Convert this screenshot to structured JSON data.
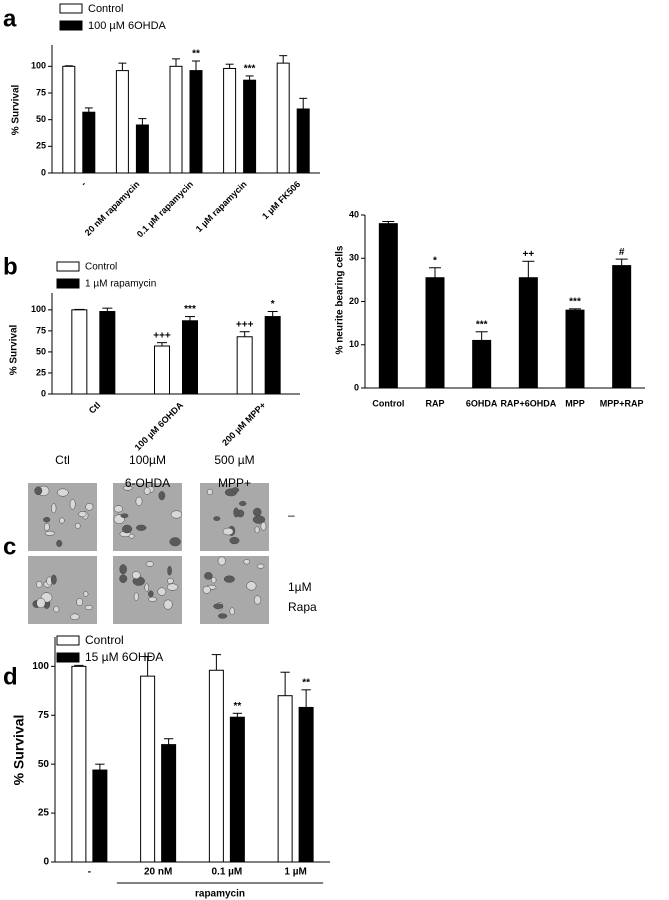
{
  "chart_data": [
    {
      "type": "bar",
      "panel_label": "a",
      "ylabel": "% Survival",
      "categories": [
        "-",
        "20 nM rapamycin",
        "0.1 µM rapamycin",
        "1 µM  rapamycin",
        "1 µM  FK506"
      ],
      "series": [
        {
          "name": "Control",
          "color": "#ffffff",
          "values": [
            100,
            96,
            100,
            98,
            103
          ],
          "errors": [
            0.5,
            7,
            7,
            4,
            7
          ],
          "annotations": [
            null,
            null,
            null,
            null,
            null
          ]
        },
        {
          "name": "100 µM  6OHDA",
          "color": "#000000",
          "values": [
            57,
            45,
            96,
            87,
            60
          ],
          "errors": [
            4,
            6,
            9,
            4,
            10
          ],
          "annotations": [
            null,
            null,
            "**",
            "***",
            null
          ]
        }
      ],
      "ylim": [
        0,
        120
      ],
      "yticks": [
        0,
        25,
        50,
        75,
        100
      ]
    },
    {
      "type": "bar",
      "panel_label": "b",
      "ylabel": "% Survival",
      "categories": [
        "Ctl",
        "100 µM 6OHDA",
        "200 µM MPP+"
      ],
      "series": [
        {
          "name": "Control",
          "color": "#ffffff",
          "values": [
            100,
            57,
            68
          ],
          "errors": [
            0.5,
            4,
            6
          ],
          "annotations": [
            null,
            "+++",
            "+++"
          ]
        },
        {
          "name": "1 µM rapamycin",
          "color": "#000000",
          "values": [
            98,
            87,
            92
          ],
          "errors": [
            4,
            5,
            6
          ],
          "annotations": [
            null,
            "***",
            "*"
          ]
        }
      ],
      "ylim": [
        0,
        120
      ],
      "yticks": [
        0,
        25,
        50,
        75,
        100
      ]
    },
    {
      "type": "bar",
      "panel_label": "c",
      "ylabel": "% neurite bearing cells",
      "image_grid": {
        "columns": [
          [
            "Ctl"
          ],
          [
            "100µM",
            "6-OHDA"
          ],
          [
            "500 µM",
            "MPP+"
          ]
        ],
        "rows": [
          [
            "–"
          ],
          [
            "1µM",
            "Rapa"
          ]
        ]
      },
      "categories": [
        "Control",
        "RAP",
        "6OHDA",
        "RAP+6OHDA",
        "MPP",
        "MPP+RAP"
      ],
      "series": [
        {
          "color": "#000000",
          "values": [
            38,
            25.5,
            11,
            25.5,
            18,
            28.3
          ],
          "errors": [
            0.5,
            2.3,
            2,
            3.8,
            0.3,
            1.5
          ],
          "annotations": [
            null,
            "*",
            "***",
            "++",
            "***",
            "#"
          ]
        }
      ],
      "ylim": [
        0,
        40
      ],
      "yticks": [
        0,
        10,
        20,
        30,
        40
      ]
    },
    {
      "type": "bar",
      "panel_label": "d",
      "ylabel": "% Survival",
      "group_label": "rapamycin",
      "categories": [
        "-",
        "20 nM",
        "0.1 µM",
        "1 µM"
      ],
      "series": [
        {
          "name": "Control",
          "color": "#ffffff",
          "values": [
            100,
            95,
            98,
            85
          ],
          "errors": [
            0.5,
            10,
            8,
            12
          ],
          "annotations": [
            null,
            null,
            null,
            null
          ]
        },
        {
          "name": "15 µM 6OHDA",
          "color": "#000000",
          "values": [
            47,
            60,
            74,
            79
          ],
          "errors": [
            3,
            3,
            2,
            9
          ],
          "annotations": [
            null,
            null,
            "**",
            "**"
          ]
        }
      ],
      "ylim": [
        0,
        115
      ],
      "yticks": [
        0,
        25,
        50,
        75,
        100
      ]
    }
  ]
}
